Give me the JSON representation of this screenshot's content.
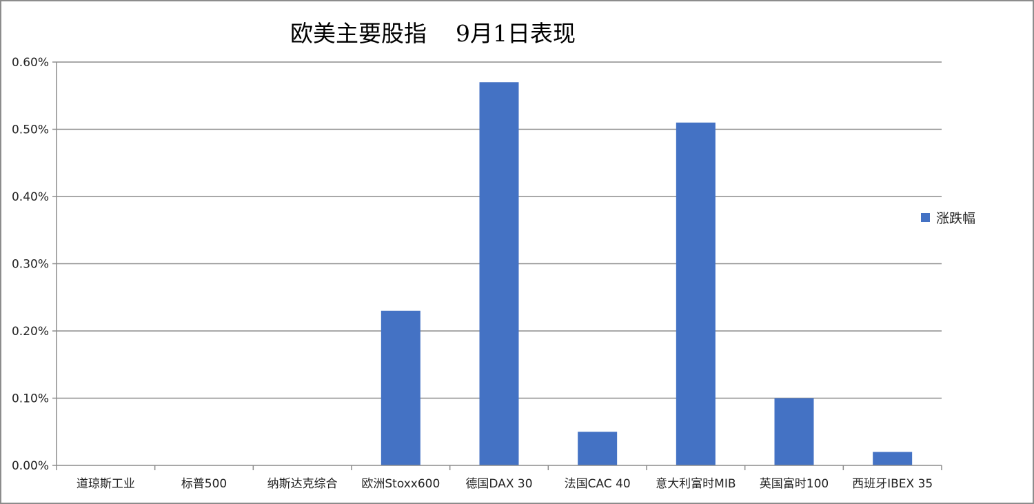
{
  "chart_data": {
    "type": "bar",
    "title": "欧美主要股指    9月1日表现",
    "categories": [
      "道琼斯工业",
      "标普500",
      "纳斯达克综合",
      "欧洲Stoxx600",
      "德国DAX 30",
      "法国CAC 40",
      "意大利富时MIB",
      "英国富时100",
      "西班牙IBEX 35"
    ],
    "series": [
      {
        "name": "涨跌幅",
        "values": [
          0,
          0,
          0,
          0.23,
          0.57,
          0.05,
          0.51,
          0.1,
          0.02
        ],
        "color": "#4472c4"
      }
    ],
    "ylim": [
      0,
      0.6
    ],
    "yticks": [
      "0.00%",
      "0.10%",
      "0.20%",
      "0.30%",
      "0.40%",
      "0.50%",
      "0.60%"
    ],
    "grid": true,
    "legend_position": "right",
    "xlabel": "",
    "ylabel": ""
  }
}
